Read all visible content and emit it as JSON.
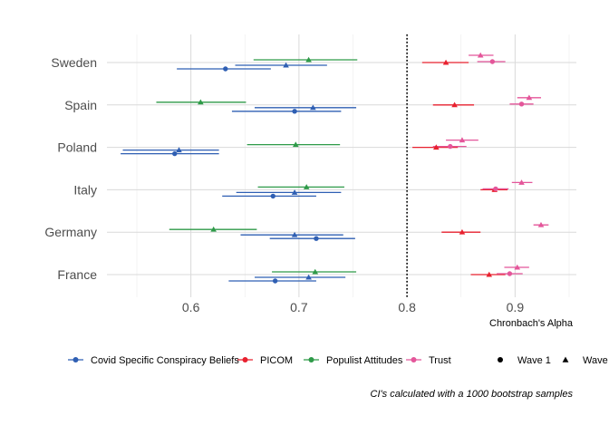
{
  "chart_data": {
    "type": "scatter",
    "subtype": "dot-and-whisker with horizontal confidence intervals",
    "xlabel": "Chronbach's Alpha",
    "xlim": [
      0.535,
      0.96
    ],
    "xticks": [
      0.6,
      0.7,
      0.8,
      0.9
    ],
    "xtick_labels": [
      "0.6",
      "0.7",
      "0.8",
      "0.9"
    ],
    "reference_line": {
      "x": 0.8,
      "style": "dotted"
    },
    "grid": true,
    "countries": [
      "France",
      "Germany",
      "Italy",
      "Poland",
      "Spain",
      "Sweden"
    ],
    "series": [
      {
        "name": "Covid Specific Conspiracy Beliefs",
        "color": "#2f5fb3",
        "points": [
          {
            "country": "Sweden",
            "wave": 2,
            "value": 0.688,
            "lo": 0.641,
            "hi": 0.726
          },
          {
            "country": "Sweden",
            "wave": 1,
            "value": 0.632,
            "lo": 0.587,
            "hi": 0.674
          },
          {
            "country": "Spain",
            "wave": 2,
            "value": 0.713,
            "lo": 0.659,
            "hi": 0.753
          },
          {
            "country": "Spain",
            "wave": 1,
            "value": 0.696,
            "lo": 0.638,
            "hi": 0.739
          },
          {
            "country": "Poland",
            "wave": 2,
            "value": 0.589,
            "lo": 0.537,
            "hi": 0.626
          },
          {
            "country": "Poland",
            "wave": 1,
            "value": 0.585,
            "lo": 0.535,
            "hi": 0.626
          },
          {
            "country": "Italy",
            "wave": 2,
            "value": 0.696,
            "lo": 0.642,
            "hi": 0.739
          },
          {
            "country": "Italy",
            "wave": 1,
            "value": 0.676,
            "lo": 0.629,
            "hi": 0.716
          },
          {
            "country": "Germany",
            "wave": 2,
            "value": 0.696,
            "lo": 0.646,
            "hi": 0.741
          },
          {
            "country": "Germany",
            "wave": 1,
            "value": 0.716,
            "lo": 0.673,
            "hi": 0.752
          },
          {
            "country": "France",
            "wave": 2,
            "value": 0.709,
            "lo": 0.659,
            "hi": 0.743
          },
          {
            "country": "France",
            "wave": 1,
            "value": 0.678,
            "lo": 0.635,
            "hi": 0.716
          }
        ]
      },
      {
        "name": "PICOM",
        "color": "#e8212f",
        "points": [
          {
            "country": "Sweden",
            "wave": 2,
            "value": 0.836,
            "lo": 0.814,
            "hi": 0.857
          },
          {
            "country": "Spain",
            "wave": 2,
            "value": 0.844,
            "lo": 0.824,
            "hi": 0.862
          },
          {
            "country": "Poland",
            "wave": 2,
            "value": 0.827,
            "lo": 0.805,
            "hi": 0.847
          },
          {
            "country": "Italy",
            "wave": 2,
            "value": 0.881,
            "lo": 0.868,
            "hi": 0.893
          },
          {
            "country": "Germany",
            "wave": 2,
            "value": 0.851,
            "lo": 0.832,
            "hi": 0.868
          },
          {
            "country": "France",
            "wave": 2,
            "value": 0.876,
            "lo": 0.859,
            "hi": 0.891
          }
        ]
      },
      {
        "name": "Populist Attitudes",
        "color": "#2e9a48",
        "points": [
          {
            "country": "Sweden",
            "wave": 2,
            "value": 0.709,
            "lo": 0.658,
            "hi": 0.754
          },
          {
            "country": "Spain",
            "wave": 2,
            "value": 0.609,
            "lo": 0.568,
            "hi": 0.651
          },
          {
            "country": "Poland",
            "wave": 2,
            "value": 0.697,
            "lo": 0.652,
            "hi": 0.738
          },
          {
            "country": "Italy",
            "wave": 2,
            "value": 0.707,
            "lo": 0.662,
            "hi": 0.742
          },
          {
            "country": "Germany",
            "wave": 2,
            "value": 0.621,
            "lo": 0.58,
            "hi": 0.661
          },
          {
            "country": "France",
            "wave": 2,
            "value": 0.715,
            "lo": 0.675,
            "hi": 0.753
          }
        ]
      },
      {
        "name": "Trust",
        "color": "#e4569a",
        "points": [
          {
            "country": "Sweden",
            "wave": 2,
            "value": 0.868,
            "lo": 0.857,
            "hi": 0.88
          },
          {
            "country": "Sweden",
            "wave": 1,
            "value": 0.879,
            "lo": 0.865,
            "hi": 0.891
          },
          {
            "country": "Spain",
            "wave": 2,
            "value": 0.913,
            "lo": 0.902,
            "hi": 0.924
          },
          {
            "country": "Spain",
            "wave": 1,
            "value": 0.906,
            "lo": 0.895,
            "hi": 0.917
          },
          {
            "country": "Poland",
            "wave": 2,
            "value": 0.851,
            "lo": 0.836,
            "hi": 0.866
          },
          {
            "country": "Poland",
            "wave": 1,
            "value": 0.84,
            "lo": 0.824,
            "hi": 0.855
          },
          {
            "country": "Italy",
            "wave": 2,
            "value": 0.906,
            "lo": 0.897,
            "hi": 0.916
          },
          {
            "country": "Italy",
            "wave": 1,
            "value": 0.882,
            "lo": 0.87,
            "hi": 0.894
          },
          {
            "country": "Germany",
            "wave": 2,
            "value": 0.924,
            "lo": 0.917,
            "hi": 0.931
          },
          {
            "country": "France",
            "wave": 2,
            "value": 0.902,
            "lo": 0.89,
            "hi": 0.913
          },
          {
            "country": "France",
            "wave": 1,
            "value": 0.895,
            "lo": 0.883,
            "hi": 0.907
          }
        ]
      }
    ],
    "shape_legend": [
      {
        "label": "Wave 1",
        "shape": "circle"
      },
      {
        "label": "Wave",
        "shape": "triangle"
      }
    ],
    "caption": "CI's calculated with a 1000 bootstrap samples",
    "legend_placement": "bottom"
  }
}
